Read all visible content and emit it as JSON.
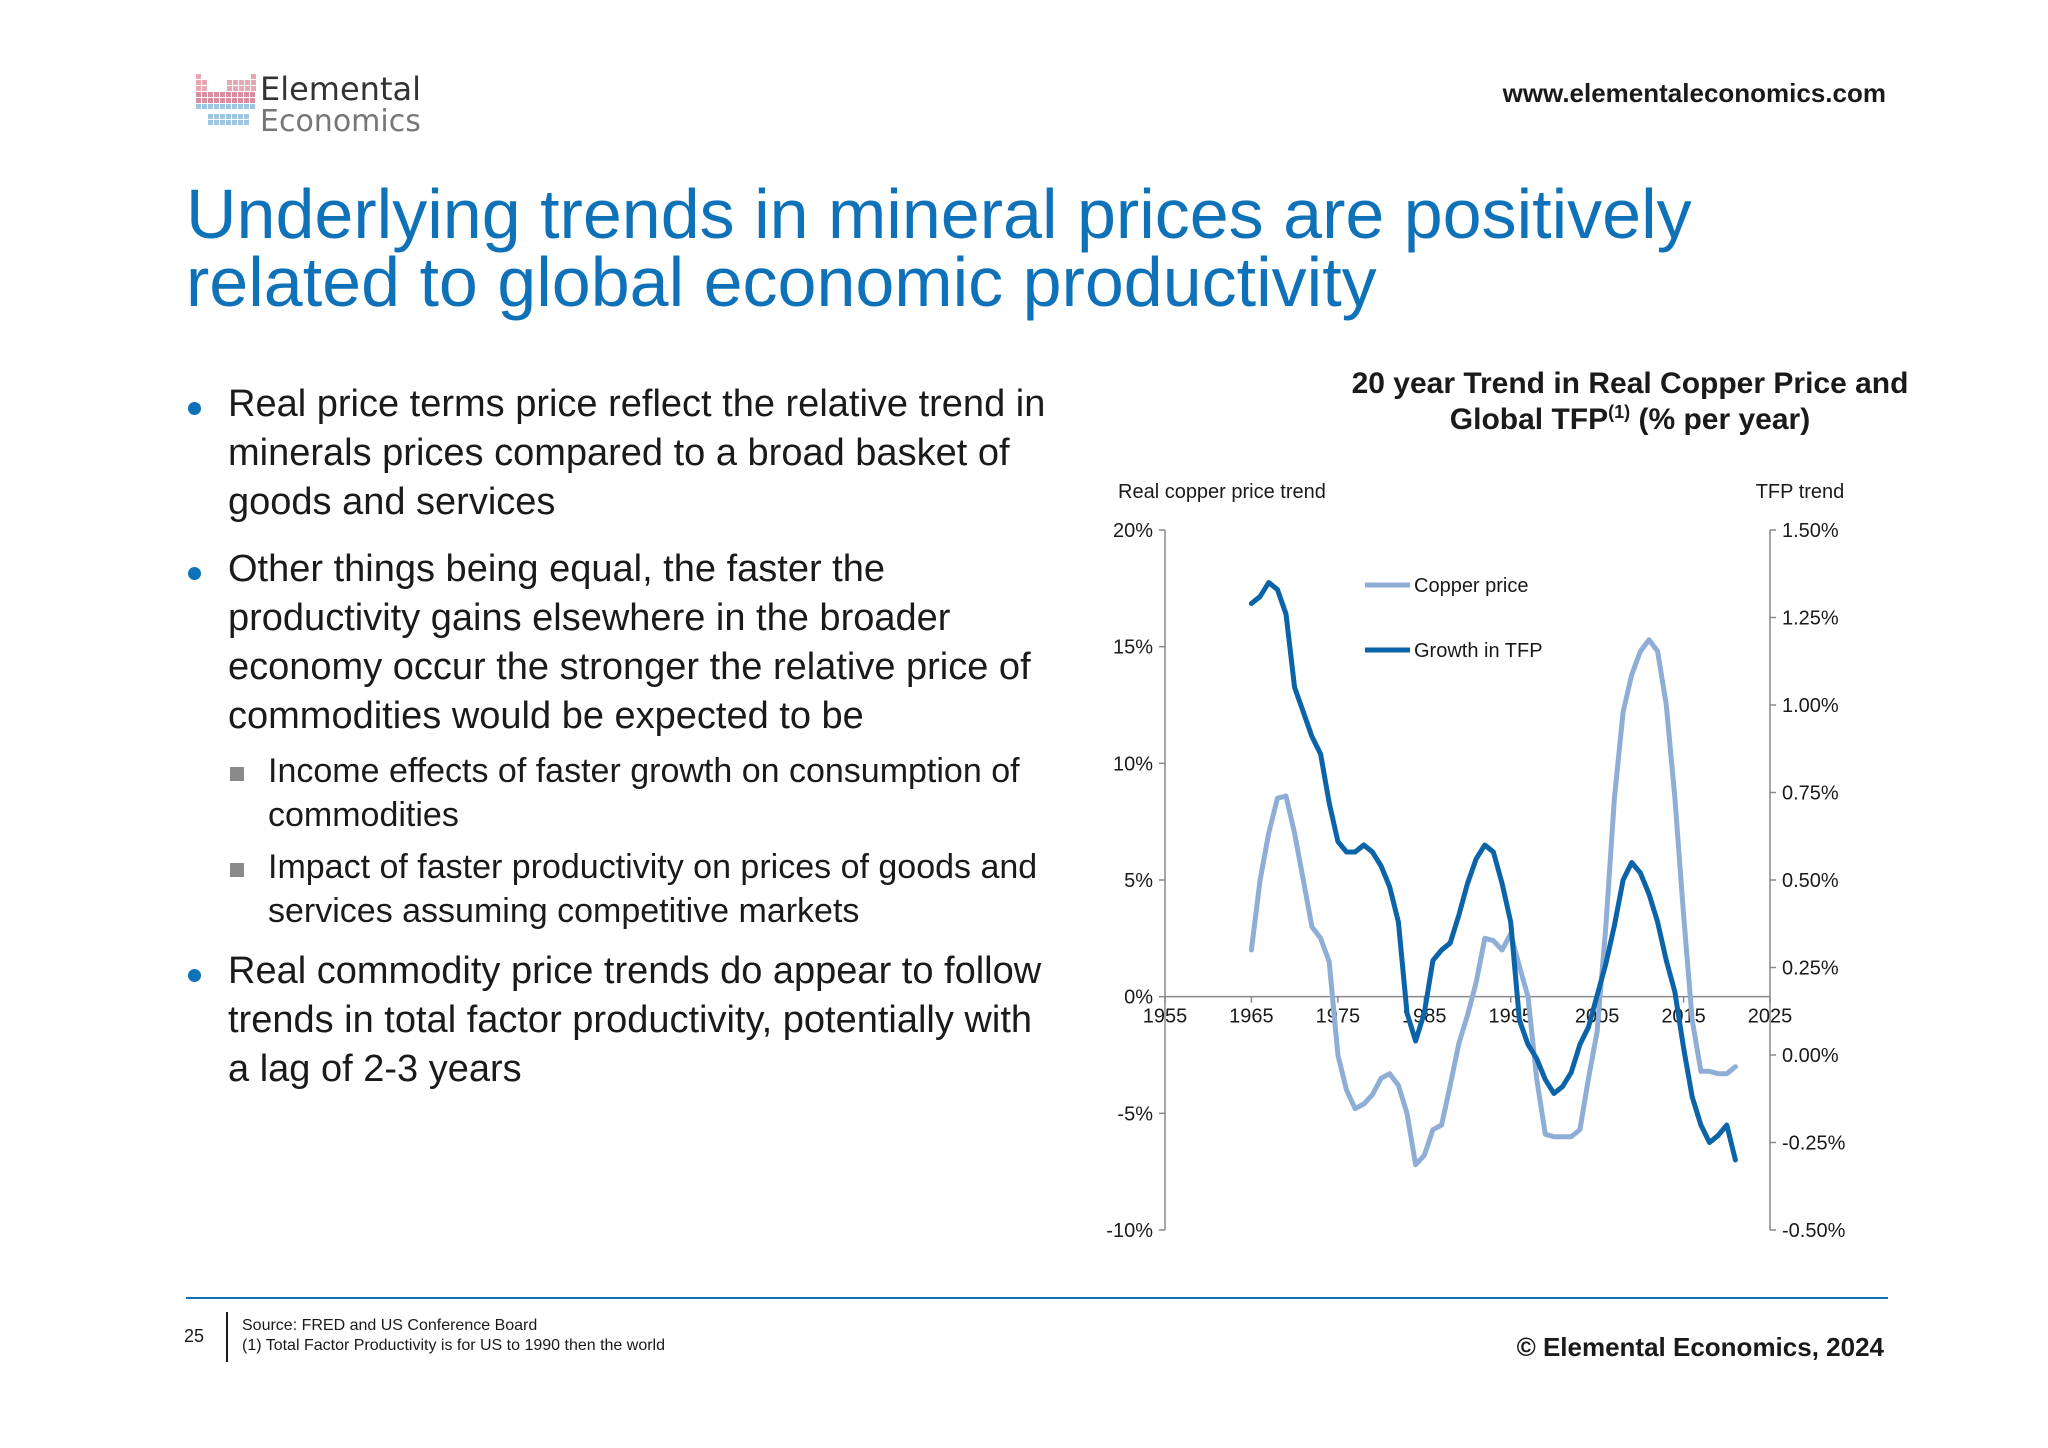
{
  "logo": {
    "line1": "Elemental",
    "line2": "Economics"
  },
  "header": {
    "website": "www.elementaleconomics.com"
  },
  "title": "Underlying trends in mineral prices are positively related to global economic productivity",
  "bullets": [
    {
      "text": "Real price terms price reflect the relative trend in minerals prices compared to a broad basket of goods and services",
      "subs": []
    },
    {
      "text": "Other things being equal, the faster the productivity gains elsewhere in the broader economy occur the stronger the relative price of commodities would be expected to be",
      "subs": [
        "Income effects of faster growth on consumption of commodities",
        "Impact of faster productivity on prices of goods and services assuming competitive markets"
      ]
    },
    {
      "text": "Real commodity price trends do appear to follow trends in total factor productivity, potentially with a lag of 2-3 years",
      "subs": []
    }
  ],
  "chart_header": {
    "line1": "20 year Trend in Real Copper Price and",
    "line2a": "Global TFP",
    "line2sup": "(1)",
    "line2b": " (% per year)"
  },
  "chart_data": {
    "type": "line",
    "xlabel": "",
    "ylabel_left": "Real copper price trend",
    "ylabel_right": "TFP trend",
    "x_ticks": [
      "1955",
      "1965",
      "1975",
      "1985",
      "1995",
      "2005",
      "2015",
      "2025"
    ],
    "x_range": [
      1955,
      2025
    ],
    "y_left_ticks": [
      "20%",
      "15%",
      "10%",
      "5%",
      "0%",
      "-5%",
      "-10%"
    ],
    "y_left_range": [
      -10,
      20
    ],
    "y_right_ticks": [
      "1.50%",
      "1.25%",
      "1.00%",
      "0.75%",
      "0.50%",
      "0.25%",
      "0.00%",
      "-0.25%",
      "-0.50%"
    ],
    "y_right_range": [
      -0.5,
      1.5
    ],
    "legend_position": "top-center",
    "series": [
      {
        "name": "Copper price",
        "axis": "left",
        "color": "#8eaed6",
        "x": [
          1965,
          1966,
          1967,
          1968,
          1969,
          1970,
          1971,
          1972,
          1973,
          1974,
          1975,
          1976,
          1977,
          1978,
          1979,
          1980,
          1981,
          1982,
          1983,
          1984,
          1985,
          1986,
          1987,
          1988,
          1989,
          1990,
          1991,
          1992,
          1993,
          1994,
          1995,
          1996,
          1997,
          1998,
          1999,
          2000,
          2001,
          2002,
          2003,
          2004,
          2005,
          2006,
          2007,
          2008,
          2009,
          2010,
          2011,
          2012,
          2013,
          2014,
          2015,
          2016,
          2017,
          2018,
          2019,
          2020,
          2021
        ],
        "y": [
          2,
          5,
          7,
          8.5,
          8.6,
          7,
          5,
          3,
          2.5,
          1.5,
          -2.5,
          -4,
          -4.8,
          -4.6,
          -4.2,
          -3.5,
          -3.3,
          -3.8,
          -5,
          -7.2,
          -6.8,
          -5.7,
          -5.5,
          -3.8,
          -2,
          -0.8,
          0.6,
          2.5,
          2.4,
          2,
          2.7,
          1.3,
          0,
          -3.5,
          -5.9,
          -6,
          -6,
          -6,
          -5.7,
          -3.5,
          -1.5,
          3,
          8.5,
          12.2,
          13.8,
          14.8,
          15.3,
          14.8,
          12.5,
          8.5,
          3.5,
          -1,
          -3.2,
          -3.2,
          -3.3,
          -3.3,
          -3
        ]
      },
      {
        "name": "Growth in TFP",
        "axis": "right",
        "color": "#0b63a8",
        "x": [
          1965,
          1966,
          1967,
          1968,
          1969,
          1970,
          1971,
          1972,
          1973,
          1974,
          1975,
          1976,
          1977,
          1978,
          1979,
          1980,
          1981,
          1982,
          1983,
          1984,
          1985,
          1986,
          1987,
          1988,
          1989,
          1990,
          1991,
          1992,
          1993,
          1994,
          1995,
          1996,
          1997,
          1998,
          1999,
          2000,
          2001,
          2002,
          2003,
          2004,
          2005,
          2006,
          2007,
          2008,
          2009,
          2010,
          2011,
          2012,
          2013,
          2014,
          2015,
          2016,
          2017,
          2018,
          2019,
          2020,
          2021
        ],
        "y": [
          1.29,
          1.31,
          1.35,
          1.33,
          1.26,
          1.05,
          0.98,
          0.91,
          0.86,
          0.72,
          0.61,
          0.58,
          0.58,
          0.6,
          0.58,
          0.54,
          0.48,
          0.38,
          0.12,
          0.04,
          0.12,
          0.27,
          0.3,
          0.32,
          0.4,
          0.49,
          0.56,
          0.6,
          0.58,
          0.49,
          0.38,
          0.1,
          0.03,
          -0.01,
          -0.07,
          -0.11,
          -0.09,
          -0.05,
          0.03,
          0.08,
          0.17,
          0.26,
          0.37,
          0.5,
          0.55,
          0.52,
          0.46,
          0.38,
          0.27,
          0.18,
          0.02,
          -0.12,
          -0.2,
          -0.25,
          -0.23,
          -0.2,
          -0.3
        ]
      }
    ]
  },
  "footer": {
    "page_number": "25",
    "source_line1": "Source: FRED and US Conference Board",
    "source_line2": "(1) Total Factor Productivity is for US to 1990 then the world",
    "copyright": "© Elemental Economics, 2024"
  }
}
